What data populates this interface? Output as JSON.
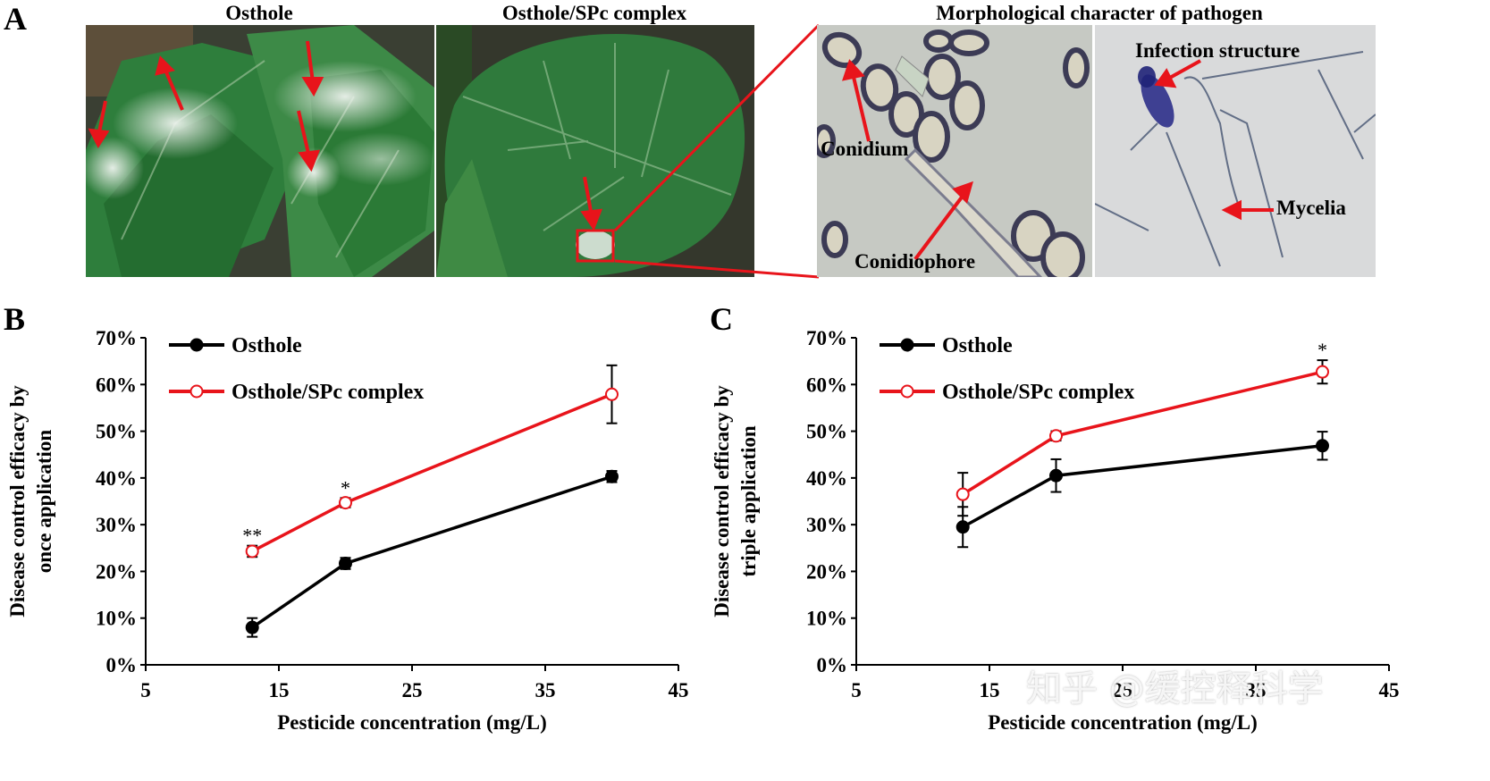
{
  "panels": {
    "a": "A",
    "b": "B",
    "c": "C"
  },
  "photos": {
    "title_1": "Osthole",
    "title_2": "Osthole/SPc complex",
    "title_3": "Morphological character of pathogen",
    "labels": {
      "conidium": "Conidium",
      "conidiophore": "Conidiophore",
      "infection": "Infection structure",
      "mycelia": "Mycelia"
    }
  },
  "colors": {
    "osthole": "#000000",
    "complex": "#e8141b",
    "leaf": "#2f7a38",
    "micro_bg": "#c9ccc6"
  },
  "chart_data": [
    {
      "type": "line",
      "panel": "B",
      "xlabel": "Pesticide concentration (mg/L)",
      "ylabel_line1": "Disease control efficacy by",
      "ylabel_line2": "once application",
      "xlim": [
        5,
        45
      ],
      "ylim": [
        0,
        70
      ],
      "xticks": [
        5,
        15,
        25,
        35,
        45
      ],
      "yticks": [
        "0%",
        "10%",
        "20%",
        "30%",
        "40%",
        "50%",
        "60%",
        "70%"
      ],
      "x": [
        13,
        20,
        40
      ],
      "legend": [
        "Osthole",
        "Osthole/SPc complex"
      ],
      "series": [
        {
          "name": "Osthole",
          "values": [
            8,
            21.7,
            40.3
          ],
          "errors": [
            2,
            1.2,
            1.2
          ],
          "marker": "filled"
        },
        {
          "name": "Osthole/SPc complex",
          "values": [
            24.3,
            34.7,
            57.9
          ],
          "errors": [
            1.2,
            1,
            6.2
          ],
          "marker": "open"
        }
      ],
      "annotations": [
        {
          "x": 13,
          "text": "**"
        },
        {
          "x": 20,
          "text": "*"
        }
      ]
    },
    {
      "type": "line",
      "panel": "C",
      "xlabel": "Pesticide concentration (mg/L)",
      "ylabel_line1": "Disease control efficacy by",
      "ylabel_line2": "triple application",
      "xlim": [
        5,
        45
      ],
      "ylim": [
        0,
        70
      ],
      "xticks": [
        5,
        15,
        25,
        35,
        45
      ],
      "yticks": [
        "0%",
        "10%",
        "20%",
        "30%",
        "40%",
        "50%",
        "60%",
        "70%"
      ],
      "x": [
        13,
        20,
        40
      ],
      "legend": [
        "Osthole",
        "Osthole/SPc complex"
      ],
      "series": [
        {
          "name": "Osthole",
          "values": [
            29.5,
            40.5,
            46.9
          ],
          "errors": [
            4.3,
            3.5,
            3
          ],
          "marker": "filled"
        },
        {
          "name": "Osthole/SPc complex",
          "values": [
            36.5,
            49,
            62.7
          ],
          "errors": [
            4.6,
            1,
            2.5
          ],
          "marker": "open"
        }
      ],
      "annotations": [
        {
          "x": 40,
          "text": "*"
        }
      ]
    }
  ],
  "watermark": "知乎 @缓控释科学"
}
